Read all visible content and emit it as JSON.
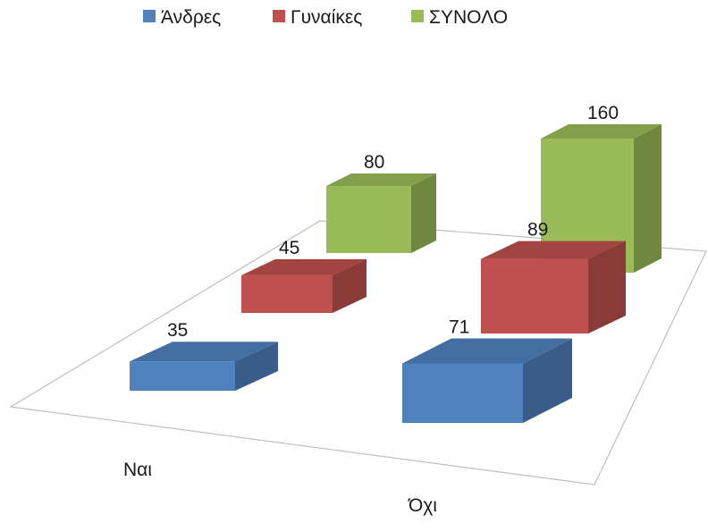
{
  "chart_data": {
    "type": "bar",
    "variant": "3d-column",
    "title": "",
    "categories": [
      "Ναι",
      "Όχι"
    ],
    "series": [
      {
        "name": "Άνδρες",
        "values": [
          35,
          71
        ],
        "color": "#4f81bd"
      },
      {
        "name": "Γυναίκες",
        "values": [
          45,
          89
        ],
        "color": "#c0504d"
      },
      {
        "name": "ΣΥΝΟΛΟ",
        "values": [
          80,
          160
        ],
        "color": "#9bbb59"
      }
    ],
    "data_labels": true,
    "grid": false,
    "legend": "top"
  }
}
